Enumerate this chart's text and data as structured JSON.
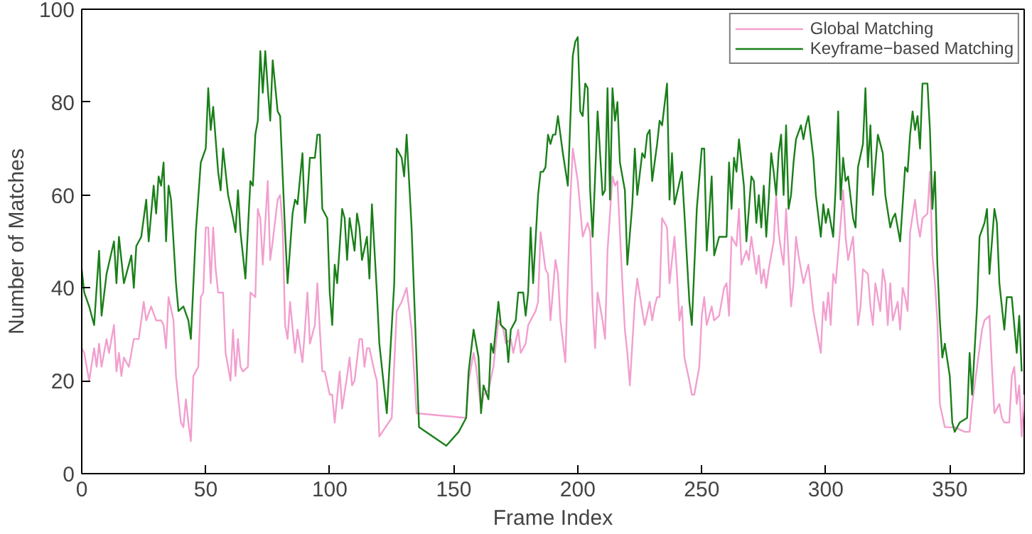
{
  "chart_data": {
    "type": "line",
    "xlabel": "Frame Index",
    "ylabel": "Number of Matches",
    "xlim": [
      0,
      380
    ],
    "ylim": [
      0,
      100
    ],
    "xticks": [
      0,
      50,
      100,
      150,
      200,
      250,
      300,
      350
    ],
    "yticks": [
      0,
      20,
      40,
      60,
      80,
      100
    ],
    "grid": false,
    "legend": "top right",
    "line_style": "solid",
    "series": [
      {
        "name": "Global Matching",
        "color": "#f29fcf",
        "x": [
          0,
          1,
          3,
          5,
          6,
          7,
          8,
          10,
          11,
          13,
          14,
          15,
          16,
          17,
          19,
          21,
          23,
          25,
          26,
          28,
          30,
          32,
          33,
          34,
          35,
          37,
          38,
          40,
          41,
          42,
          43,
          44,
          45,
          47,
          48,
          49,
          50,
          51,
          52,
          53,
          54,
          55,
          57,
          58,
          60,
          61,
          62,
          63,
          64,
          65,
          67,
          68,
          70,
          71,
          72,
          73,
          75,
          76,
          77,
          79,
          80,
          81,
          82,
          83,
          84,
          86,
          87,
          89,
          90,
          91,
          92,
          94,
          95,
          96,
          97,
          98,
          100,
          101,
          102,
          104,
          105,
          107,
          108,
          109,
          110,
          112,
          113,
          114,
          115,
          116,
          118,
          119,
          120,
          125,
          127,
          129,
          131,
          133,
          135,
          155,
          156,
          158,
          159,
          161,
          162,
          164,
          166,
          167,
          168,
          170,
          171,
          173,
          174,
          176,
          177,
          179,
          180,
          182,
          183,
          184,
          185,
          187,
          188,
          189,
          191,
          192,
          193,
          195,
          196,
          197,
          198,
          200,
          201,
          202,
          204,
          205,
          206,
          207,
          208,
          210,
          211,
          212,
          214,
          215,
          216,
          218,
          219,
          220,
          221,
          223,
          224,
          226,
          227,
          229,
          230,
          231,
          232,
          233,
          234,
          236,
          237,
          239,
          240,
          241,
          242,
          243,
          245,
          246,
          247,
          249,
          250,
          251,
          252,
          254,
          255,
          257,
          258,
          259,
          260,
          261,
          262,
          264,
          265,
          266,
          268,
          269,
          270,
          272,
          273,
          274,
          275,
          276,
          277,
          279,
          280,
          281,
          282,
          283,
          284,
          286,
          287,
          288,
          289,
          291,
          292,
          293,
          294,
          295,
          296,
          298,
          299,
          300,
          301,
          302,
          303,
          304,
          306,
          307,
          308,
          309,
          311,
          312,
          313,
          314,
          315,
          317,
          318,
          319,
          320,
          322,
          323,
          324,
          325,
          326,
          327,
          329,
          330,
          331,
          332,
          333,
          334,
          336,
          337,
          338,
          339,
          341,
          342,
          343,
          344,
          345,
          346,
          348,
          349,
          352,
          356,
          358,
          359,
          361,
          363,
          364,
          366,
          367,
          368,
          370,
          371,
          372,
          374,
          375,
          376,
          377,
          378,
          379,
          380
        ],
        "values": [
          27,
          26,
          20,
          27,
          23,
          28,
          23,
          29,
          26,
          32,
          22,
          26,
          21,
          25,
          23,
          29,
          29,
          37,
          33,
          36,
          33,
          33,
          32,
          27,
          38,
          33,
          21,
          11,
          10,
          16,
          11,
          7,
          21,
          23,
          38,
          39,
          53,
          53,
          41,
          53,
          44,
          39,
          39,
          26,
          20,
          31,
          21,
          29,
          23,
          22,
          23,
          39,
          38,
          57,
          55,
          45,
          63,
          46,
          50,
          59,
          60,
          53,
          32,
          29,
          37,
          26,
          31,
          24,
          31,
          39,
          28,
          32,
          41,
          31,
          22,
          22,
          17,
          17,
          11,
          22,
          14,
          21,
          25,
          19,
          20,
          29,
          29,
          23,
          27,
          27,
          22,
          20,
          8,
          12,
          35,
          37,
          40,
          31,
          13,
          12,
          20,
          26,
          23,
          14,
          17,
          18,
          23,
          28,
          33,
          31,
          28,
          29,
          26,
          31,
          26,
          28,
          32,
          34,
          35,
          37,
          52,
          44,
          43,
          33,
          46,
          43,
          33,
          24,
          42,
          59,
          70,
          63,
          57,
          51,
          54,
          52,
          36,
          27,
          39,
          33,
          29,
          48,
          64,
          62,
          63,
          41,
          31,
          26,
          19,
          37,
          42,
          35,
          32,
          37,
          33,
          36,
          38,
          38,
          55,
          53,
          41,
          51,
          43,
          33,
          36,
          25,
          20,
          17,
          17,
          23,
          34,
          38,
          32,
          36,
          33,
          34,
          37,
          40,
          41,
          34,
          51,
          49,
          57,
          45,
          48,
          46,
          51,
          43,
          47,
          41,
          44,
          40,
          44,
          50,
          60,
          52,
          48,
          45,
          57,
          36,
          41,
          51,
          47,
          41,
          43,
          45,
          40,
          35,
          32,
          26,
          37,
          33,
          39,
          32,
          43,
          41,
          54,
          61,
          51,
          46,
          51,
          42,
          32,
          36,
          44,
          43,
          36,
          32,
          41,
          35,
          44,
          41,
          32,
          41,
          33,
          37,
          31,
          40,
          38,
          35,
          52,
          59,
          54,
          51,
          55,
          56,
          65,
          47,
          41,
          33,
          15,
          10,
          10,
          10,
          9,
          9,
          15,
          23,
          31,
          33,
          34,
          23,
          13,
          15,
          12,
          11,
          11,
          21,
          23,
          15,
          19,
          8,
          17
        ]
      },
      {
        "name": "Keyframe−based Matching",
        "color": "#1a7f1a",
        "x": [
          0,
          1,
          3,
          5,
          7,
          8,
          10,
          13,
          14,
          15,
          17,
          20,
          21,
          22,
          24,
          26,
          27,
          29,
          30,
          31,
          32,
          33,
          34,
          35,
          36,
          38,
          39,
          41,
          43,
          44,
          46,
          48,
          50,
          51,
          52,
          53,
          55,
          56,
          57,
          59,
          61,
          62,
          63,
          64,
          66,
          68,
          69,
          70,
          71,
          72,
          73,
          74,
          75,
          76,
          77,
          79,
          80,
          82,
          83,
          85,
          86,
          87,
          89,
          90,
          91,
          92,
          94,
          95,
          96,
          97,
          99,
          100,
          101,
          102,
          103,
          105,
          106,
          107,
          108,
          110,
          111,
          112,
          113,
          115,
          116,
          117,
          119,
          120,
          123,
          126,
          127,
          129,
          130,
          131,
          133,
          136,
          147,
          152,
          155,
          156,
          158,
          160,
          161,
          162,
          164,
          165,
          166,
          168,
          169,
          171,
          172,
          173,
          175,
          176,
          178,
          179,
          180,
          181,
          182,
          184,
          185,
          186,
          187,
          188,
          189,
          190,
          191,
          192,
          194,
          196,
          198,
          199,
          200,
          201,
          202,
          203,
          204,
          205,
          206,
          207,
          208,
          210,
          211,
          212,
          213,
          214,
          215,
          216,
          217,
          219,
          220,
          222,
          223,
          224,
          226,
          227,
          228,
          229,
          230,
          232,
          233,
          234,
          236,
          237,
          238,
          239,
          242,
          243,
          245,
          246,
          248,
          250,
          251,
          252,
          254,
          255,
          257,
          259,
          260,
          261,
          262,
          263,
          264,
          265,
          267,
          268,
          270,
          271,
          272,
          273,
          274,
          275,
          276,
          277,
          278,
          279,
          280,
          281,
          282,
          283,
          284,
          285,
          286,
          287,
          288,
          290,
          291,
          292,
          293,
          295,
          296,
          298,
          299,
          300,
          301,
          303,
          304,
          305,
          306,
          307,
          308,
          309,
          311,
          312,
          313,
          315,
          316,
          317,
          318,
          319,
          321,
          322,
          323,
          324,
          326,
          327,
          328,
          329,
          330,
          332,
          333,
          334,
          335,
          336,
          337,
          338,
          339,
          341,
          342,
          343,
          344,
          345,
          346,
          347,
          348,
          350,
          351,
          352,
          354,
          357,
          358,
          359,
          361,
          362,
          364,
          365,
          366,
          368,
          369,
          370,
          372,
          373,
          375,
          377,
          378,
          379
        ],
        "values": [
          44,
          39,
          36,
          32,
          48,
          34,
          43,
          50,
          41,
          51,
          41,
          47,
          40,
          49,
          51,
          59,
          50,
          62,
          56,
          64,
          62,
          67,
          50,
          62,
          59,
          41,
          35,
          36,
          33,
          29,
          52,
          67,
          70,
          83,
          74,
          79,
          65,
          61,
          70,
          60,
          55,
          52,
          61,
          52,
          42,
          63,
          62,
          73,
          76,
          91,
          82,
          91,
          83,
          76,
          89,
          78,
          77,
          52,
          41,
          56,
          59,
          58,
          69,
          54,
          60,
          68,
          68,
          73,
          73,
          57,
          55,
          39,
          32,
          45,
          41,
          57,
          55,
          46,
          55,
          48,
          56,
          53,
          46,
          51,
          42,
          58,
          39,
          28,
          13,
          41,
          70,
          68,
          64,
          73,
          53,
          10,
          6,
          9,
          12,
          22,
          31,
          25,
          13,
          19,
          16,
          28,
          26,
          37,
          32,
          31,
          24,
          31,
          33,
          39,
          39,
          34,
          39,
          53,
          41,
          60,
          65,
          65,
          66,
          73,
          71,
          73,
          73,
          77,
          69,
          62,
          90,
          93,
          94,
          78,
          77,
          84,
          83,
          61,
          51,
          64,
          78,
          60,
          61,
          83,
          59,
          83,
          76,
          80,
          67,
          61,
          45,
          58,
          70,
          60,
          69,
          68,
          73,
          74,
          63,
          71,
          76,
          75,
          84,
          59,
          69,
          58,
          65,
          56,
          37,
          32,
          57,
          70,
          70,
          48,
          64,
          47,
          51,
          51,
          51,
          67,
          57,
          68,
          65,
          72,
          62,
          50,
          64,
          63,
          54,
          60,
          53,
          62,
          51,
          59,
          69,
          65,
          60,
          69,
          73,
          60,
          75,
          57,
          60,
          67,
          72,
          75,
          72,
          75,
          77,
          68,
          60,
          51,
          58,
          54,
          57,
          51,
          62,
          78,
          59,
          68,
          63,
          64,
          55,
          53,
          66,
          71,
          83,
          66,
          75,
          60,
          73,
          71,
          69,
          60,
          53,
          55,
          56,
          53,
          50,
          66,
          65,
          73,
          78,
          74,
          77,
          70,
          84,
          84,
          74,
          57,
          65,
          45,
          33,
          25,
          28,
          21,
          11,
          9,
          11,
          12,
          26,
          17,
          36,
          51,
          54,
          57,
          43,
          57,
          54,
          41,
          31,
          38,
          38,
          26,
          34,
          22
        ]
      }
    ]
  }
}
